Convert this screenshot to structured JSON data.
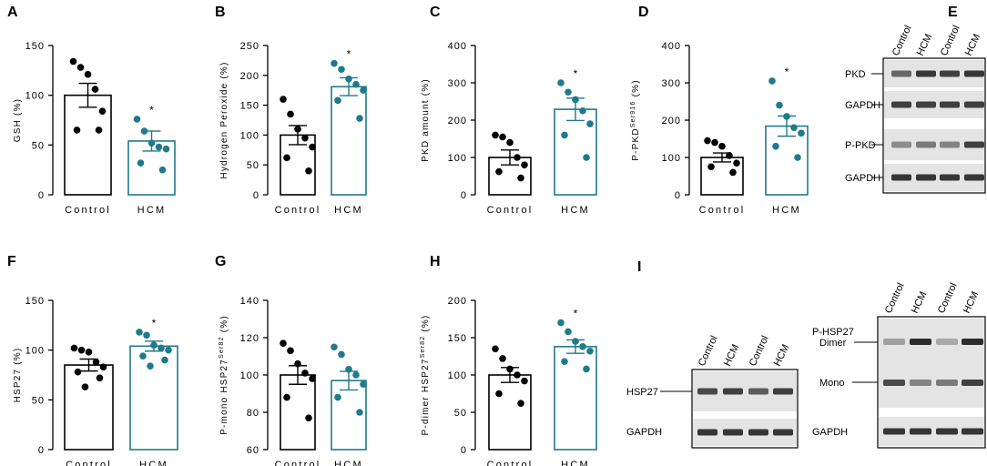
{
  "colors": {
    "control": "#000000",
    "hcm": "#1F7A8C",
    "blot_bg": "#e4e4e4",
    "band": "#222222"
  },
  "panel_labels": {
    "A": "A",
    "B": "B",
    "C": "C",
    "D": "D",
    "E": "E",
    "F": "F",
    "G": "G",
    "H": "H",
    "I": "I"
  },
  "chart_data": [
    {
      "id": "A",
      "type": "bar",
      "title": "",
      "xlabel": "",
      "ylabel": "GSH (%)",
      "categories": [
        "Control",
        "HCM"
      ],
      "values": [
        100,
        54
      ],
      "errors": [
        12,
        10
      ],
      "ylim": [
        0,
        150
      ],
      "yticks": [
        0,
        50,
        100,
        150
      ],
      "significance": [
        "",
        "*"
      ],
      "points": [
        [
          134,
          128,
          121,
          106,
          84,
          65,
          65
        ],
        [
          76,
          64,
          52,
          48,
          46,
          32,
          25
        ]
      ]
    },
    {
      "id": "B",
      "type": "bar",
      "title": "",
      "xlabel": "",
      "ylabel": "Hydrogen Peroxide (%)",
      "categories": [
        "Control",
        "HCM"
      ],
      "values": [
        100,
        181
      ],
      "errors": [
        16,
        15
      ],
      "ylim": [
        0,
        250
      ],
      "yticks": [
        0,
        50,
        100,
        150,
        200,
        250
      ],
      "significance": [
        "",
        "*"
      ],
      "points": [
        [
          160,
          135,
          110,
          95,
          80,
          62,
          40
        ],
        [
          220,
          210,
          194,
          185,
          175,
          158,
          128
        ]
      ]
    },
    {
      "id": "C",
      "type": "bar",
      "title": "",
      "xlabel": "",
      "ylabel": "PKD amount (%)",
      "categories": [
        "Control",
        "HCM"
      ],
      "values": [
        100,
        229
      ],
      "errors": [
        20,
        30
      ],
      "ylim": [
        0,
        400
      ],
      "yticks": [
        0,
        100,
        200,
        300,
        400
      ],
      "significance": [
        "",
        "*"
      ],
      "points": [
        [
          160,
          155,
          140,
          100,
          80,
          62,
          45
        ],
        [
          300,
          275,
          255,
          225,
          190,
          160,
          100
        ]
      ]
    },
    {
      "id": "D",
      "type": "bar",
      "title": "",
      "xlabel": "",
      "ylabel": "P-PKD Ser916 (%)",
      "ylabel_parts": {
        "pre": "P-PKD",
        "sup": "Ser916",
        "post": " (%)"
      },
      "categories": [
        "Control",
        "HCM"
      ],
      "values": [
        100,
        184
      ],
      "errors": [
        12,
        27
      ],
      "ylim": [
        0,
        400
      ],
      "yticks": [
        0,
        100,
        200,
        300,
        400
      ],
      "significance": [
        "",
        "*"
      ],
      "points": [
        [
          145,
          140,
          130,
          105,
          85,
          75,
          60
        ],
        [
          305,
          240,
          210,
          180,
          165,
          130,
          100
        ]
      ]
    },
    {
      "id": "F",
      "type": "bar",
      "title": "",
      "xlabel": "",
      "ylabel": "HSP27 (%)",
      "categories": [
        "Control",
        "HCM"
      ],
      "values": [
        85,
        104
      ],
      "errors": [
        6,
        5
      ],
      "ylim": [
        0,
        150
      ],
      "yticks": [
        0,
        50,
        100,
        150
      ],
      "significance": [
        "",
        "*"
      ],
      "points": [
        [
          102,
          100,
          98,
          88,
          83,
          78,
          72,
          63
        ],
        [
          118,
          115,
          105,
          102,
          100,
          94,
          90,
          84
        ]
      ]
    },
    {
      "id": "G",
      "type": "bar",
      "title": "",
      "xlabel": "",
      "ylabel": "P-mono HSP27 Ser82 (%)",
      "ylabel_parts": {
        "pre": "P-mono HSP27",
        "sup": "Ser82",
        "post": " (%)"
      },
      "categories": [
        "Control",
        "HCM"
      ],
      "values": [
        100,
        97
      ],
      "errors": [
        5,
        5
      ],
      "ylim": [
        60,
        140
      ],
      "yticks": [
        60,
        80,
        100,
        120,
        140
      ],
      "significance": [
        "",
        ""
      ],
      "points": [
        [
          117,
          113,
          106,
          101,
          98,
          88,
          77
        ],
        [
          115,
          111,
          103,
          100,
          95,
          88,
          80
        ]
      ]
    },
    {
      "id": "H",
      "type": "bar",
      "title": "",
      "xlabel": "",
      "ylabel": "P-dimer HSP27 Ser82 (%)",
      "ylabel_parts": {
        "pre": "P-dimer HSP27",
        "sup": "Ser82",
        "post": " (%)"
      },
      "categories": [
        "Control",
        "HCM"
      ],
      "values": [
        100,
        138
      ],
      "errors": [
        10,
        9
      ],
      "ylim": [
        0,
        200
      ],
      "yticks": [
        0,
        50,
        100,
        150,
        200
      ],
      "significance": [
        "",
        "*"
      ],
      "points": [
        [
          135,
          122,
          108,
          100,
          92,
          75,
          62
        ],
        [
          170,
          158,
          145,
          138,
          132,
          118,
          108
        ]
      ]
    }
  ],
  "blots": {
    "E": {
      "lanes": [
        "Control",
        "HCM",
        "Control",
        "HCM"
      ],
      "rows": [
        "PKD",
        "GAPDH",
        "P-PKD",
        "GAPDH"
      ]
    },
    "I_left": {
      "lanes": [
        "Control",
        "HCM",
        "Control",
        "HCM"
      ],
      "rows": [
        "HSP27",
        "GAPDH"
      ]
    },
    "I_right": {
      "title": "P-HSP27",
      "lanes": [
        "Control",
        "HCM",
        "Control",
        "HCM"
      ],
      "rows": [
        "Dimer",
        "Mono",
        "GAPDH"
      ]
    }
  }
}
